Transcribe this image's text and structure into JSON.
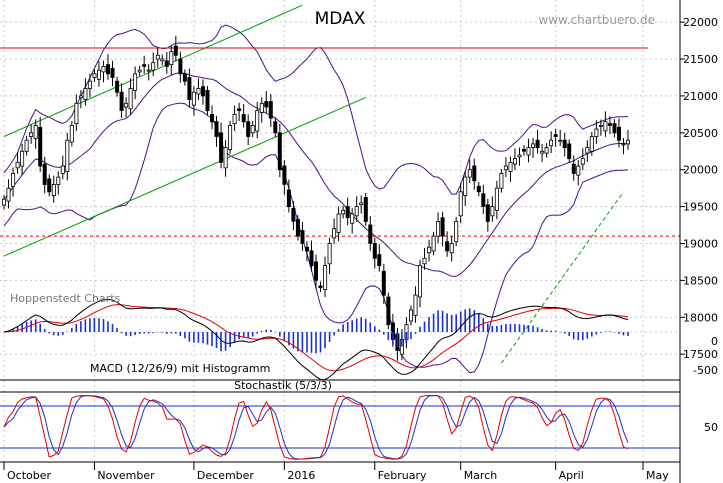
{
  "chart_data": {
    "type": "candlestick",
    "title": "MDAX",
    "watermark": "www.chartbuero.de",
    "source_label": "Hoppenstedt Charts",
    "x_axis": {
      "labels": [
        "October",
        "November",
        "December",
        "2016",
        "February",
        "March",
        "April",
        "May"
      ]
    },
    "price_axis": {
      "ticks": [
        17500,
        18000,
        18500,
        19000,
        19500,
        20000,
        20500,
        21000,
        21500,
        22000
      ],
      "tick_labels": [
        "17500",
        "18000",
        "18500",
        "19000",
        "19500",
        "20000",
        "20500",
        "21000",
        "21500",
        "22000"
      ],
      "range": [
        17150,
        22300
      ]
    },
    "levels": {
      "resistance": 21650,
      "support": 19100
    },
    "trend_channel": {
      "upper": [
        {
          "x": 0,
          "y": 20450
        },
        {
          "x": 66,
          "y": 22230
        }
      ],
      "lower": [
        {
          "x": 0,
          "y": 18830
        },
        {
          "x": 80,
          "y": 20980
        }
      ]
    },
    "rising_trend": [
      {
        "x": 110,
        "y": 17380
      },
      {
        "x": 137,
        "y": 19700
      }
    ],
    "price_series": [
      19600,
      19750,
      19950,
      20100,
      20250,
      20400,
      20500,
      20600,
      20050,
      19800,
      19700,
      19800,
      19900,
      20050,
      20400,
      20600,
      20900,
      21000,
      21100,
      21200,
      21300,
      21350,
      21400,
      21300,
      21250,
      21050,
      20800,
      20900,
      21100,
      21300,
      21350,
      21400,
      21350,
      21450,
      21550,
      21500,
      21400,
      21600,
      21550,
      21300,
      21200,
      20950,
      21050,
      21100,
      21000,
      20800,
      20650,
      20450,
      20100,
      20300,
      20600,
      20750,
      20800,
      20650,
      20450,
      20600,
      20800,
      20900,
      20850,
      20700,
      20500,
      20000,
      19800,
      19500,
      19300,
      19100,
      19000,
      18900,
      18700,
      18500,
      18400,
      18700,
      19000,
      19200,
      19400,
      19450,
      19350,
      19400,
      19500,
      19550,
      19300,
      19000,
      18800,
      18700,
      18300,
      17900,
      17700,
      17550,
      17700,
      17900,
      18100,
      18300,
      18700,
      18800,
      18950,
      19100,
      19300,
      19100,
      18900,
      19000,
      19300,
      19700,
      19900,
      20000,
      19850,
      19700,
      19500,
      19300,
      19500,
      19750,
      19950,
      20050,
      20100,
      20150,
      20200,
      20250,
      20300,
      20350,
      20300,
      20250,
      20300,
      20400,
      20450,
      20400,
      20300,
      20150,
      19950,
      20050,
      20150,
      20300,
      20450,
      20550,
      20600,
      20650,
      20600,
      20500,
      20400,
      20350,
      20400
    ],
    "bollinger_window": 20,
    "bollinger_width": 2,
    "macd": {
      "label": "MACD (12/26/9) mit Histogramm",
      "ticks": [
        0,
        -500
      ],
      "tick_labels": [
        "0",
        "-500"
      ],
      "range": [
        -600,
        400
      ]
    },
    "stochastic": {
      "label": "Stochastik (5/3/3)",
      "ticks": [
        50
      ],
      "tick_labels": [
        "50"
      ],
      "upper_band": 80,
      "lower_band": 20,
      "range": [
        0,
        100
      ]
    },
    "colors": {
      "up": "#ffffff",
      "down": "#000000",
      "bollinger": "#4b0f8c",
      "trend": "#00a000",
      "resistance": "#e00000",
      "macd_line": "#000000",
      "signal_line": "#e00000",
      "histogram": "#1a2fd0",
      "stoch_k": "#e00000",
      "stoch_d": "#1a2fd0",
      "band_lines": "#1a2fd0",
      "grid": "#c8c8c8"
    }
  }
}
